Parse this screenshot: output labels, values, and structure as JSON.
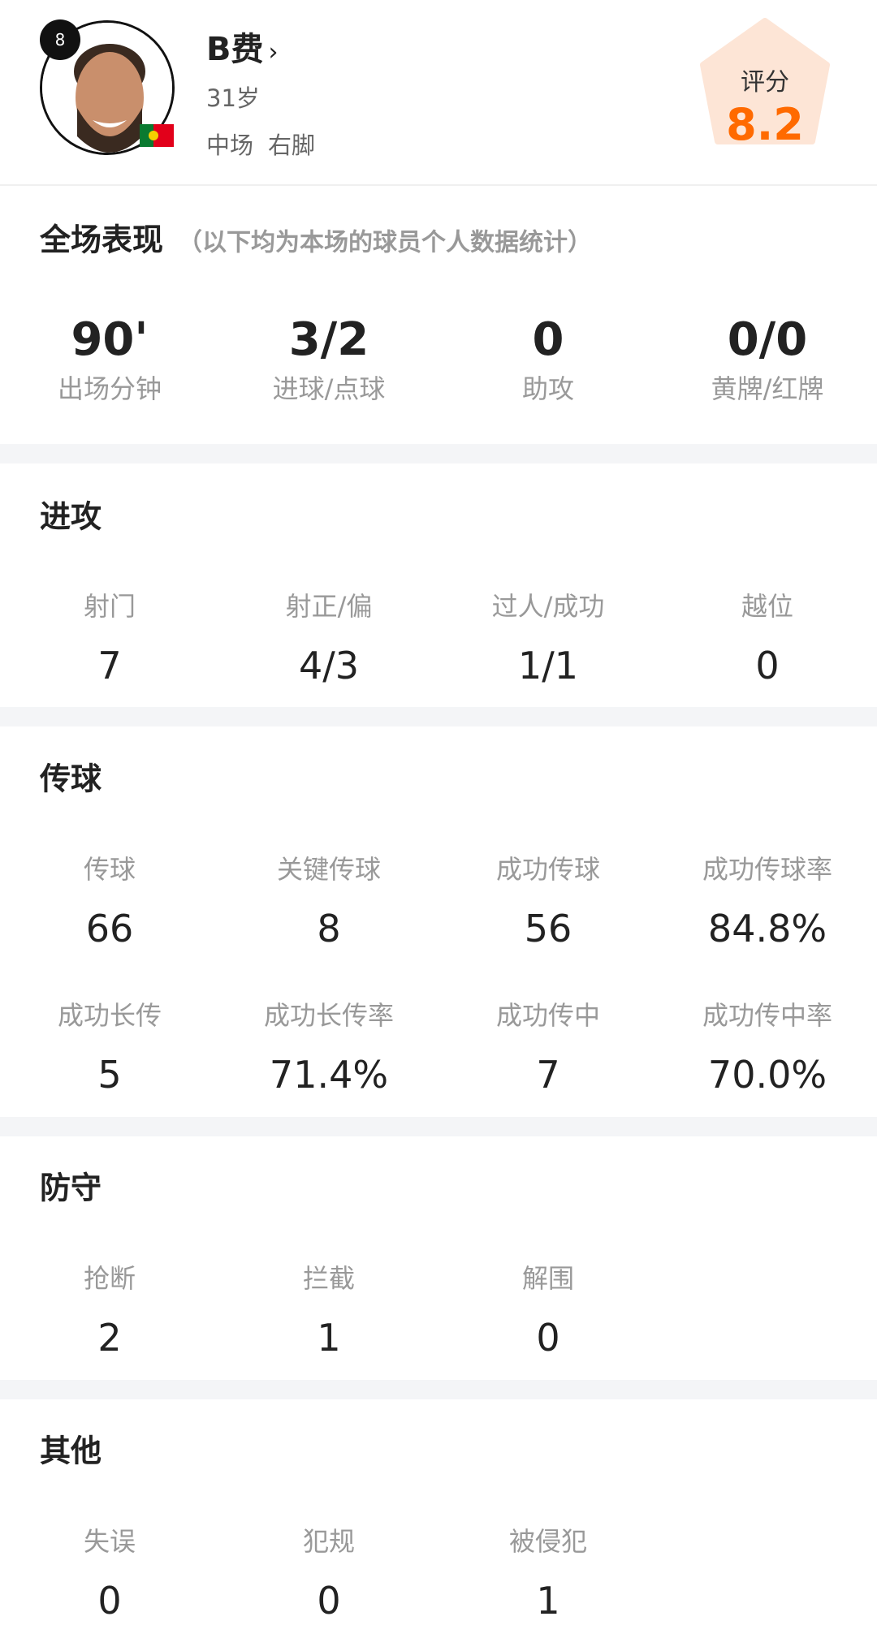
{
  "player": {
    "number": "8",
    "name": "B费",
    "chevron": "›",
    "age": "31岁",
    "position": "中场",
    "foot": "右脚",
    "nationality_flag": "portugal-flag-icon"
  },
  "rating": {
    "label": "评分",
    "value": "8.2",
    "color": "#ff6a00",
    "bg": "#fde5d6"
  },
  "overview": {
    "title": "全场表现",
    "subtitle": "（以下均为本场的球员个人数据统计）",
    "stats": [
      {
        "value": "90'",
        "label": "出场分钟"
      },
      {
        "value": "3/2",
        "label": "进球/点球"
      },
      {
        "value": "0",
        "label": "助攻"
      },
      {
        "value": "0/0",
        "label": "黄牌/红牌"
      }
    ]
  },
  "attack": {
    "title": "进攻",
    "stats": [
      {
        "label": "射门",
        "value": "7"
      },
      {
        "label": "射正/偏",
        "value": "4/3"
      },
      {
        "label": "过人/成功",
        "value": "1/1"
      },
      {
        "label": "越位",
        "value": "0"
      }
    ]
  },
  "passing": {
    "title": "传球",
    "row1": [
      {
        "label": "传球",
        "value": "66"
      },
      {
        "label": "关键传球",
        "value": "8"
      },
      {
        "label": "成功传球",
        "value": "56"
      },
      {
        "label": "成功传球率",
        "value": "84.8%"
      }
    ],
    "row2": [
      {
        "label": "成功长传",
        "value": "5"
      },
      {
        "label": "成功长传率",
        "value": "71.4%"
      },
      {
        "label": "成功传中",
        "value": "7"
      },
      {
        "label": "成功传中率",
        "value": "70.0%"
      }
    ]
  },
  "defense": {
    "title": "防守",
    "stats": [
      {
        "label": "抢断",
        "value": "2"
      },
      {
        "label": "拦截",
        "value": "1"
      },
      {
        "label": "解围",
        "value": "0"
      }
    ]
  },
  "other": {
    "title": "其他",
    "stats": [
      {
        "label": "失误",
        "value": "0"
      },
      {
        "label": "犯规",
        "value": "0"
      },
      {
        "label": "被侵犯",
        "value": "1"
      }
    ]
  }
}
